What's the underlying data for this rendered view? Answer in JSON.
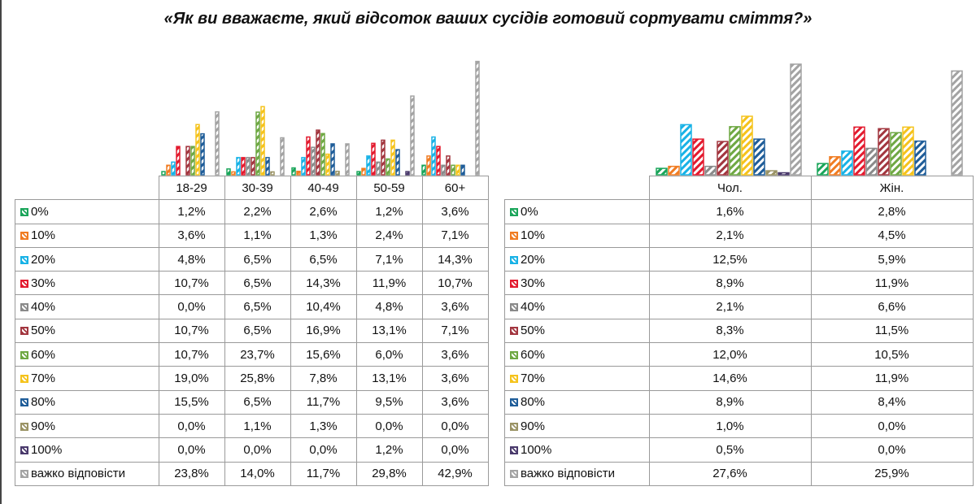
{
  "title": "«Як ви вважаєте, який відсоток ваших сусідів готовий сортувати сміття?»",
  "chart_data": [
    {
      "type": "bar",
      "categories": [
        "18-29",
        "30-39",
        "40-49",
        "50-59",
        "60+"
      ],
      "series": [
        {
          "name": "0%",
          "color": "#1aa55a",
          "values": [
            1.2,
            2.2,
            2.6,
            1.2,
            3.6
          ],
          "labels": [
            "1,2%",
            "2,2%",
            "2,6%",
            "1,2%",
            "3,6%"
          ]
        },
        {
          "name": "10%",
          "color": "#f07c22",
          "values": [
            3.6,
            1.1,
            1.3,
            2.4,
            7.1
          ],
          "labels": [
            "3,6%",
            "1,1%",
            "1,3%",
            "2,4%",
            "7,1%"
          ]
        },
        {
          "name": "20%",
          "color": "#18b2e6",
          "values": [
            4.8,
            6.5,
            6.5,
            7.1,
            14.3
          ],
          "labels": [
            "4,8%",
            "6,5%",
            "6,5%",
            "7,1%",
            "14,3%"
          ]
        },
        {
          "name": "30%",
          "color": "#e31b2f",
          "values": [
            10.7,
            6.5,
            14.3,
            11.9,
            10.7
          ],
          "labels": [
            "10,7%",
            "6,5%",
            "14,3%",
            "11,9%",
            "10,7%"
          ]
        },
        {
          "name": "40%",
          "color": "#8a8a8a",
          "values": [
            0.0,
            6.5,
            10.4,
            4.8,
            3.6
          ],
          "labels": [
            "0,0%",
            "6,5%",
            "10,4%",
            "4,8%",
            "3,6%"
          ]
        },
        {
          "name": "50%",
          "color": "#a2363f",
          "values": [
            10.7,
            6.5,
            16.9,
            13.1,
            7.1
          ],
          "labels": [
            "10,7%",
            "6,5%",
            "16,9%",
            "13,1%",
            "7,1%"
          ]
        },
        {
          "name": "60%",
          "color": "#6fa843",
          "values": [
            10.7,
            23.7,
            15.6,
            6.0,
            3.6
          ],
          "labels": [
            "10,7%",
            "23,7%",
            "15,6%",
            "6,0%",
            "3,6%"
          ]
        },
        {
          "name": "70%",
          "color": "#f5c31c",
          "values": [
            19.0,
            25.8,
            7.8,
            13.1,
            3.6
          ],
          "labels": [
            "19,0%",
            "25,8%",
            "7,8%",
            "13,1%",
            "3,6%"
          ]
        },
        {
          "name": "80%",
          "color": "#1f5d99",
          "values": [
            15.5,
            6.5,
            11.7,
            9.5,
            3.6
          ],
          "labels": [
            "15,5%",
            "6,5%",
            "11,7%",
            "9,5%",
            "3,6%"
          ]
        },
        {
          "name": "90%",
          "color": "#9a9365",
          "values": [
            0.0,
            1.1,
            1.3,
            0.0,
            0.0
          ],
          "labels": [
            "0,0%",
            "1,1%",
            "1,3%",
            "0,0%",
            "0,0%"
          ]
        },
        {
          "name": "100%",
          "color": "#4a3a6c",
          "values": [
            0.0,
            0.0,
            0.0,
            1.2,
            0.0
          ],
          "labels": [
            "0,0%",
            "0,0%",
            "0,0%",
            "1,2%",
            "0,0%"
          ]
        },
        {
          "name": "важко відповісти",
          "color": "#a3a3a3",
          "values": [
            23.8,
            14.0,
            11.7,
            29.8,
            42.9
          ],
          "labels": [
            "23,8%",
            "14,0%",
            "11,7%",
            "29,8%",
            "42,9%"
          ]
        }
      ]
    },
    {
      "type": "bar",
      "categories": [
        "Чол.",
        "Жін."
      ],
      "series": [
        {
          "name": "0%",
          "color": "#1aa55a",
          "values": [
            1.6,
            2.8
          ],
          "labels": [
            "1,6%",
            "2,8%"
          ]
        },
        {
          "name": "10%",
          "color": "#f07c22",
          "values": [
            2.1,
            4.5
          ],
          "labels": [
            "2,1%",
            "4,5%"
          ]
        },
        {
          "name": "20%",
          "color": "#18b2e6",
          "values": [
            12.5,
            5.9
          ],
          "labels": [
            "12,5%",
            "5,9%"
          ]
        },
        {
          "name": "30%",
          "color": "#e31b2f",
          "values": [
            8.9,
            11.9
          ],
          "labels": [
            "8,9%",
            "11,9%"
          ]
        },
        {
          "name": "40%",
          "color": "#8a8a8a",
          "values": [
            2.1,
            6.6
          ],
          "labels": [
            "2,1%",
            "6,6%"
          ]
        },
        {
          "name": "50%",
          "color": "#a2363f",
          "values": [
            8.3,
            11.5
          ],
          "labels": [
            "8,3%",
            "11,5%"
          ]
        },
        {
          "name": "60%",
          "color": "#6fa843",
          "values": [
            12.0,
            10.5
          ],
          "labels": [
            "12,0%",
            "10,5%"
          ]
        },
        {
          "name": "70%",
          "color": "#f5c31c",
          "values": [
            14.6,
            11.9
          ],
          "labels": [
            "14,6%",
            "11,9%"
          ]
        },
        {
          "name": "80%",
          "color": "#1f5d99",
          "values": [
            8.9,
            8.4
          ],
          "labels": [
            "8,9%",
            "8,4%"
          ]
        },
        {
          "name": "90%",
          "color": "#9a9365",
          "values": [
            1.0,
            0.0
          ],
          "labels": [
            "1,0%",
            "0,0%"
          ]
        },
        {
          "name": "100%",
          "color": "#4a3a6c",
          "values": [
            0.5,
            0.0
          ],
          "labels": [
            "0,5%",
            "0,0%"
          ]
        },
        {
          "name": "важко відповісти",
          "color": "#a3a3a3",
          "values": [
            27.6,
            25.9
          ],
          "labels": [
            "27,6%",
            "25,9%"
          ]
        }
      ]
    }
  ]
}
